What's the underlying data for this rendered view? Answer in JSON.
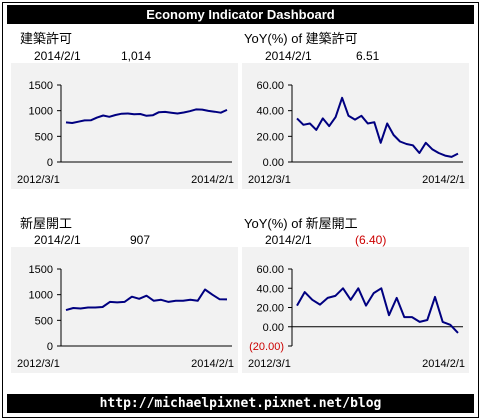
{
  "header": {
    "title": "Economy Indicator Dashboard"
  },
  "footer": {
    "url": "http://michaelpixnet.pixnet.net/blog"
  },
  "panels": [
    {
      "title": "建築許可",
      "date": "2014/2/1",
      "value": "1,014",
      "value_negative": false
    },
    {
      "title": "YoY(%) of 建築許可",
      "date": "2014/2/1",
      "value": "6.51",
      "value_negative": false
    },
    {
      "title": "新屋開工",
      "date": "2014/2/1",
      "value": "907",
      "value_negative": false
    },
    {
      "title": "YoY(%) of 新屋開工",
      "date": "2014/2/1",
      "value": "(6.40)",
      "value_negative": true
    }
  ],
  "chart_data": [
    {
      "type": "line",
      "title": "建築許可",
      "x_start": "2012/3/1",
      "x_end": "2014/2/1",
      "x_tick_labels": [
        "2012/3/1",
        "2014/2/1"
      ],
      "ylim": [
        0,
        1500
      ],
      "y_ticks": [
        0,
        500,
        1000,
        1500
      ],
      "y_tick_labels": [
        "0",
        "500",
        "1000",
        "1500"
      ],
      "grid": false,
      "line_color": "#000080",
      "values": [
        772,
        760,
        785,
        810,
        812,
        865,
        905,
        880,
        915,
        940,
        945,
        930,
        935,
        900,
        910,
        970,
        975,
        960,
        945,
        965,
        990,
        1025,
        1020,
        995,
        980,
        960,
        1014
      ]
    },
    {
      "type": "line",
      "title": "YoY(%) of 建築許可",
      "x_start": "2012/3/1",
      "x_end": "2014/2/1",
      "x_tick_labels": [
        "2012/3/1",
        "2014/2/1"
      ],
      "ylim": [
        0,
        60
      ],
      "y_ticks": [
        0,
        20,
        40,
        60
      ],
      "y_tick_labels": [
        "0.00",
        "20.00",
        "40.00",
        "60.00"
      ],
      "grid": false,
      "line_color": "#000080",
      "values": [
        34,
        29,
        30,
        25,
        34,
        28,
        35,
        50,
        36,
        33,
        36,
        30,
        31,
        15,
        30,
        21,
        16,
        14,
        13,
        7,
        15,
        10,
        7,
        5,
        4,
        6.51
      ]
    },
    {
      "type": "line",
      "title": "新屋開工",
      "x_start": "2012/3/1",
      "x_end": "2014/2/1",
      "x_tick_labels": [
        "2012/3/1",
        "2014/2/1"
      ],
      "ylim": [
        0,
        1500
      ],
      "y_ticks": [
        0,
        500,
        1000,
        1500
      ],
      "y_tick_labels": [
        "0",
        "500",
        "1000",
        "1500"
      ],
      "grid": false,
      "line_color": "#000080",
      "values": [
        700,
        740,
        730,
        750,
        750,
        760,
        860,
        850,
        860,
        960,
        920,
        980,
        880,
        900,
        860,
        880,
        880,
        900,
        880,
        1100,
        1000,
        910,
        907
      ]
    },
    {
      "type": "line",
      "title": "YoY(%) of 新屋開工",
      "x_start": "2012/3/1",
      "x_end": "2014/2/1",
      "x_tick_labels": [
        "2012/3/1",
        "2014/2/1"
      ],
      "ylim": [
        -20,
        60
      ],
      "y_ticks": [
        -20,
        0,
        20,
        40,
        60
      ],
      "y_tick_labels": [
        "(20.00)",
        "0.00",
        "20.00",
        "40.00",
        "60.00"
      ],
      "grid": false,
      "line_color": "#000080",
      "values": [
        22,
        36,
        28,
        23,
        30,
        32,
        40,
        28,
        40,
        22,
        35,
        40,
        12,
        30,
        10,
        10,
        5,
        7,
        31,
        5,
        2,
        -6.4
      ]
    }
  ]
}
